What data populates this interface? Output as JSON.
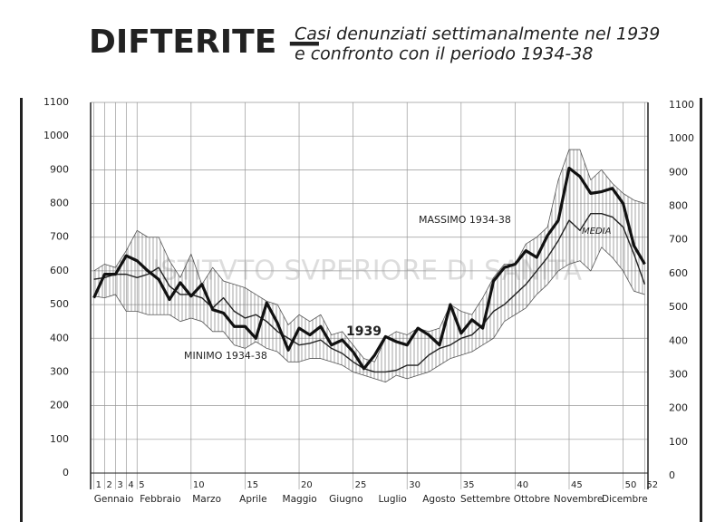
{
  "chart_data": {
    "type": "line",
    "title": "DIFTERITE —",
    "subtitle": [
      "Casi denunziati settimanalmente nel 1939",
      "e confronto con il periodo 1934-38"
    ],
    "watermark": "ISTITVTO SVPERIORE DI SANITA",
    "x": [
      1,
      2,
      3,
      4,
      5,
      6,
      7,
      8,
      9,
      10,
      11,
      12,
      13,
      14,
      15,
      16,
      17,
      18,
      19,
      20,
      21,
      22,
      23,
      24,
      25,
      26,
      27,
      28,
      29,
      30,
      31,
      32,
      33,
      34,
      35,
      36,
      37,
      38,
      39,
      40,
      41,
      42,
      43,
      44,
      45,
      46,
      47,
      48,
      49,
      50,
      51,
      52
    ],
    "xlim": [
      0.7,
      52.3
    ],
    "xticks": [
      1,
      2,
      3,
      4,
      5,
      10,
      15,
      20,
      25,
      30,
      35,
      40,
      45,
      50,
      52
    ],
    "months": [
      "Gennaio",
      "Febbraio",
      "Marzo",
      "Aprile",
      "Maggio",
      "Giugno",
      "Luglio",
      "Agosto",
      "Settembre",
      "Ottobre",
      "Novembre",
      "Dicembre"
    ],
    "ylim": [
      0,
      1100
    ],
    "yticks": [
      0,
      100,
      200,
      300,
      400,
      500,
      600,
      700,
      800,
      900,
      1000,
      1100
    ],
    "grid": true,
    "series": [
      {
        "name": "MASSIMO 1934-38",
        "color": "#555",
        "linewidth": 0.8,
        "role": "max",
        "values": [
          600,
          620,
          610,
          660,
          720,
          700,
          700,
          630,
          580,
          650,
          560,
          610,
          570,
          560,
          550,
          530,
          510,
          500,
          440,
          470,
          450,
          470,
          410,
          420,
          380,
          340,
          330,
          400,
          420,
          410,
          430,
          420,
          430,
          500,
          480,
          470,
          520,
          580,
          620,
          620,
          680,
          700,
          730,
          870,
          960,
          960,
          870,
          900,
          860,
          830,
          810,
          800
        ]
      },
      {
        "name": "MINIMO 1934-38",
        "color": "#555",
        "linewidth": 0.8,
        "role": "min",
        "values": [
          525,
          520,
          530,
          480,
          480,
          470,
          470,
          470,
          450,
          460,
          450,
          420,
          420,
          380,
          370,
          390,
          370,
          360,
          330,
          330,
          340,
          340,
          330,
          320,
          300,
          290,
          280,
          270,
          290,
          280,
          290,
          300,
          320,
          340,
          350,
          360,
          380,
          400,
          450,
          470,
          490,
          530,
          560,
          600,
          620,
          630,
          600,
          670,
          640,
          600,
          540,
          530
        ]
      },
      {
        "name": "MEDIA",
        "color": "#222",
        "linewidth": 1.4,
        "values": [
          575,
          580,
          590,
          590,
          580,
          590,
          610,
          555,
          530,
          530,
          520,
          490,
          520,
          480,
          460,
          470,
          450,
          420,
          400,
          380,
          385,
          395,
          370,
          355,
          330,
          310,
          300,
          300,
          305,
          320,
          320,
          350,
          370,
          380,
          400,
          410,
          440,
          480,
          500,
          530,
          560,
          600,
          640,
          690,
          750,
          720,
          770,
          770,
          760,
          730,
          650,
          560
        ]
      },
      {
        "name": "1939",
        "color": "#111",
        "linewidth": 3.2,
        "values": [
          520,
          590,
          590,
          645,
          630,
          600,
          575,
          515,
          565,
          525,
          560,
          485,
          475,
          435,
          435,
          400,
          505,
          445,
          365,
          430,
          410,
          435,
          380,
          395,
          360,
          310,
          350,
          405,
          390,
          380,
          430,
          410,
          380,
          500,
          415,
          455,
          430,
          570,
          610,
          620,
          660,
          640,
          705,
          750,
          905,
          880,
          830,
          835,
          845,
          800,
          675,
          620
        ]
      }
    ]
  }
}
